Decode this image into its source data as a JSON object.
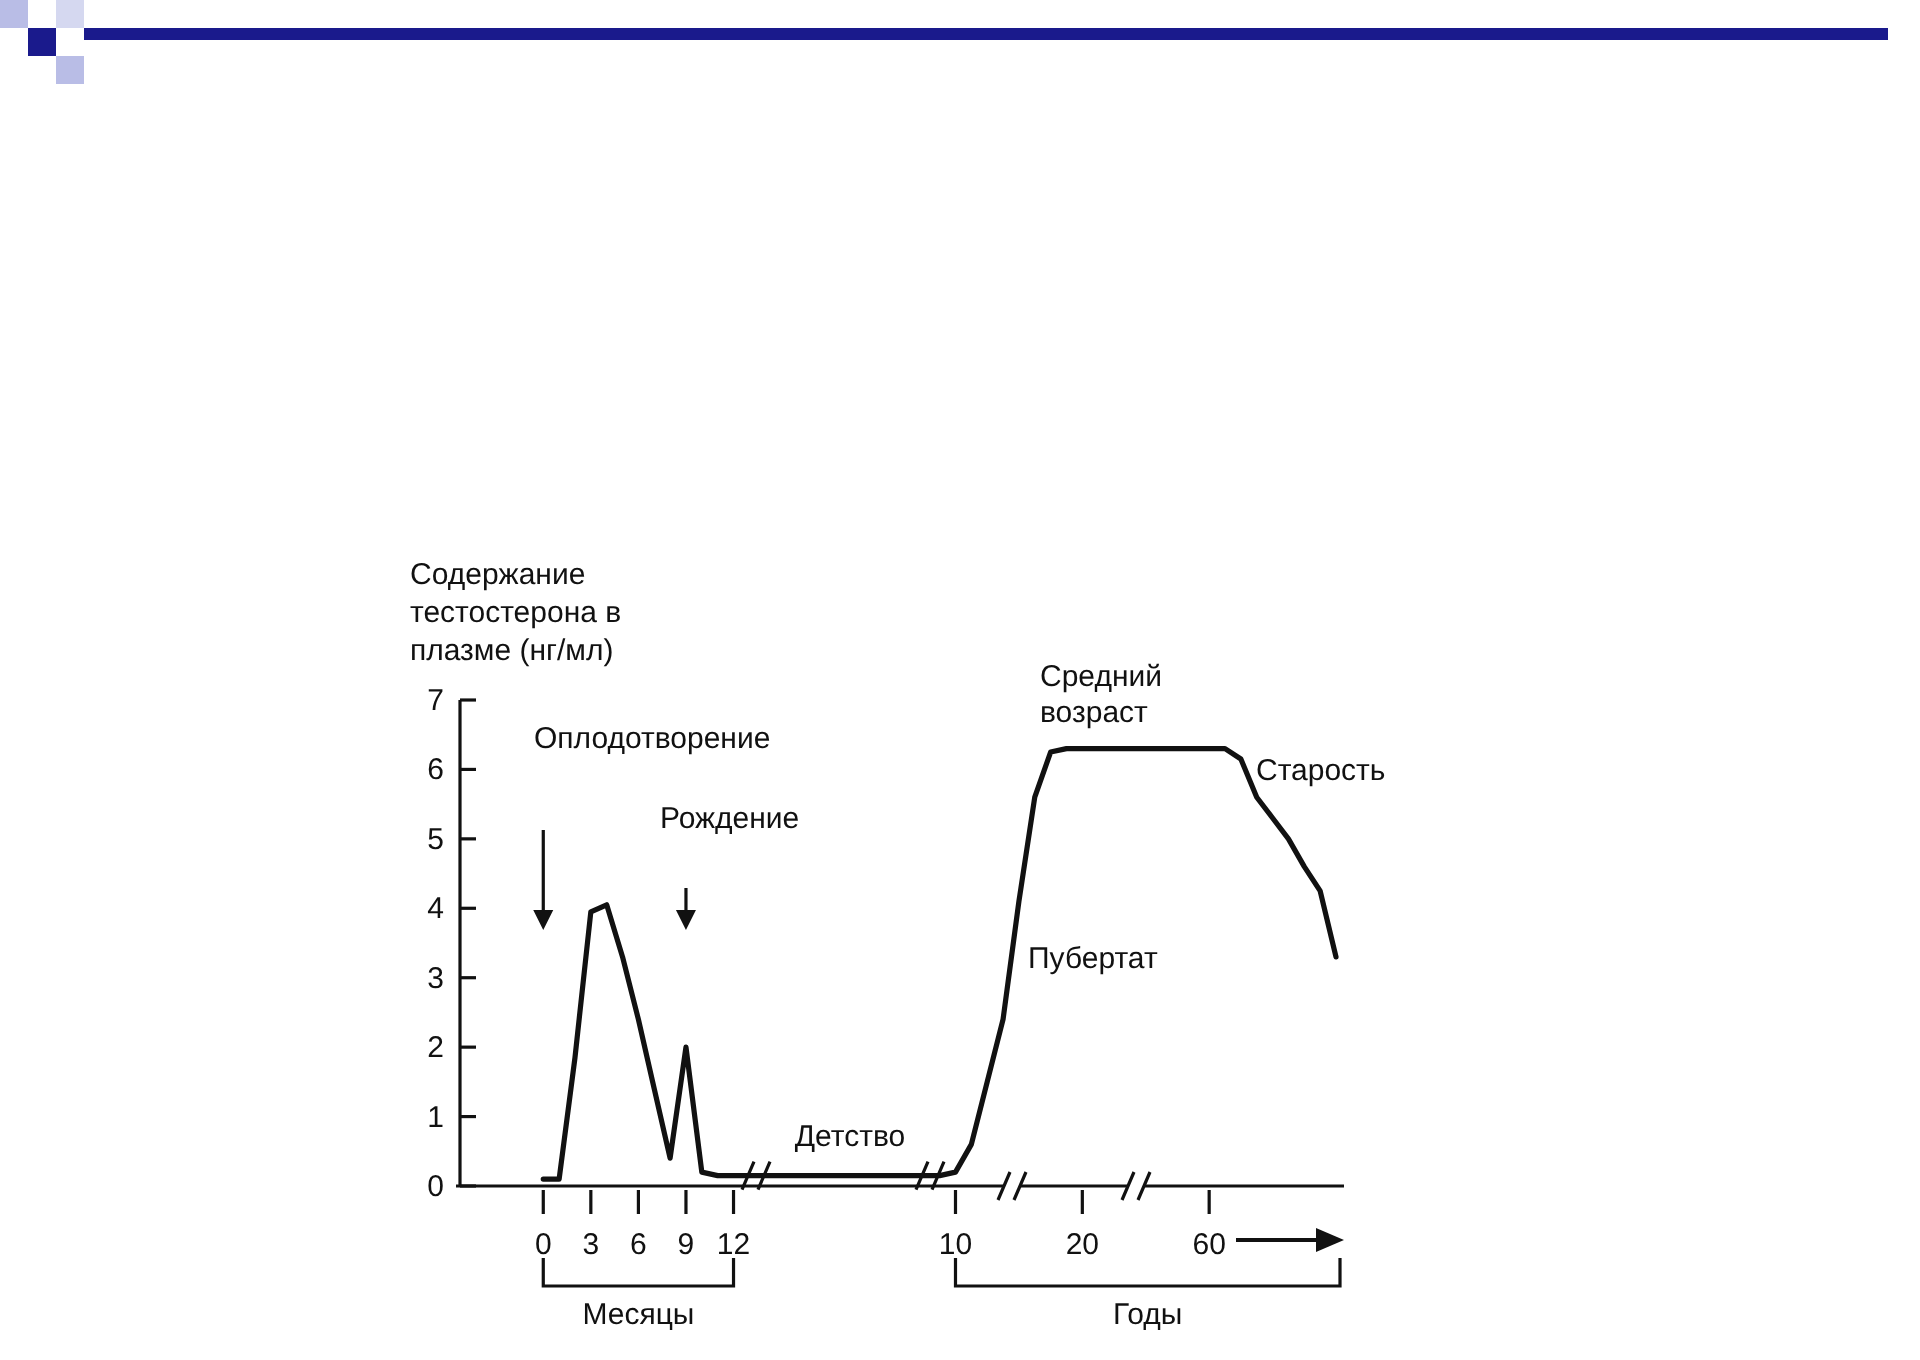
{
  "chart_data": {
    "type": "line",
    "ylabel": "Содержание тестостерона в плазме (нг/мл)",
    "categories": [
      null,
      null,
      null,
      null,
      null,
      "0",
      null,
      null,
      "3",
      null,
      null,
      "6",
      null,
      null,
      "9",
      null,
      null,
      "12",
      null,
      null,
      null,
      null,
      null,
      null,
      null,
      null,
      null,
      null,
      null,
      null,
      null,
      "10",
      null,
      null,
      null,
      null,
      null,
      null,
      null,
      "20",
      null,
      null,
      null,
      null,
      null,
      null,
      null,
      "60",
      null,
      null,
      null,
      null,
      null,
      null,
      null,
      null
    ],
    "ylim": [
      0,
      7
    ],
    "yticks": [
      0,
      1,
      2,
      3,
      4,
      5,
      6,
      7
    ],
    "series": [
      {
        "color": "#111111",
        "values": [
          null,
          null,
          null,
          null,
          null,
          0.1,
          0.1,
          1.85,
          3.95,
          4.05,
          3.3,
          2.4,
          1.4,
          0.4,
          2.0,
          0.2,
          0.15,
          0.15,
          0.15,
          0.15,
          0.15,
          0.15,
          0.15,
          0.15,
          0.15,
          0.15,
          0.15,
          0.15,
          0.15,
          0.15,
          0.15,
          0.2,
          0.6,
          1.5,
          2.4,
          4.1,
          5.6,
          6.25,
          6.3,
          6.3,
          6.3,
          6.3,
          6.3,
          6.3,
          6.3,
          6.3,
          6.3,
          6.3,
          6.3,
          6.15,
          5.6,
          5.3,
          5.0,
          4.6,
          4.25,
          3.3
        ]
      }
    ],
    "annotations": [
      "Оплодотворение",
      "Рождение",
      "Детство",
      "Пубертат",
      "Средний возраст",
      "Старость",
      "Месяцы",
      "Годы"
    ],
    "marker": "none",
    "line_style": "solid",
    "grid": false
  }
}
